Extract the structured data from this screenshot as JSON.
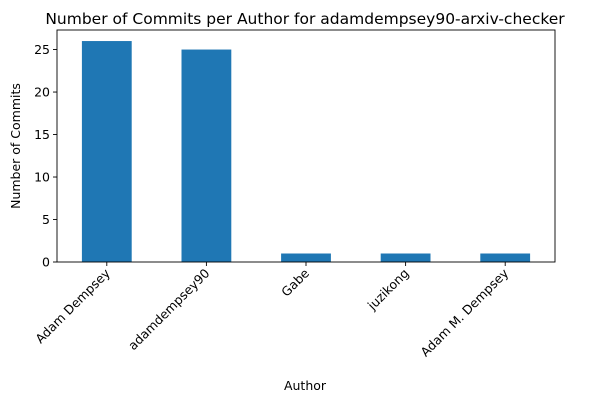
{
  "chart_data": {
    "type": "bar",
    "title": "Number of Commits per Author for adamdempsey90-arxiv-checker",
    "xlabel": "Author",
    "ylabel": "Number of Commits",
    "categories": [
      "Adam Dempsey",
      "adamdempsey90",
      "Gabe",
      "juzikong",
      "Adam M. Dempsey"
    ],
    "values": [
      26,
      25,
      1,
      1,
      1
    ],
    "ylim": [
      0,
      27.3
    ],
    "yticks": [
      0,
      5,
      10,
      15,
      20,
      25
    ],
    "grid": false,
    "legend": "none",
    "bar_color": "#1f77b4"
  }
}
